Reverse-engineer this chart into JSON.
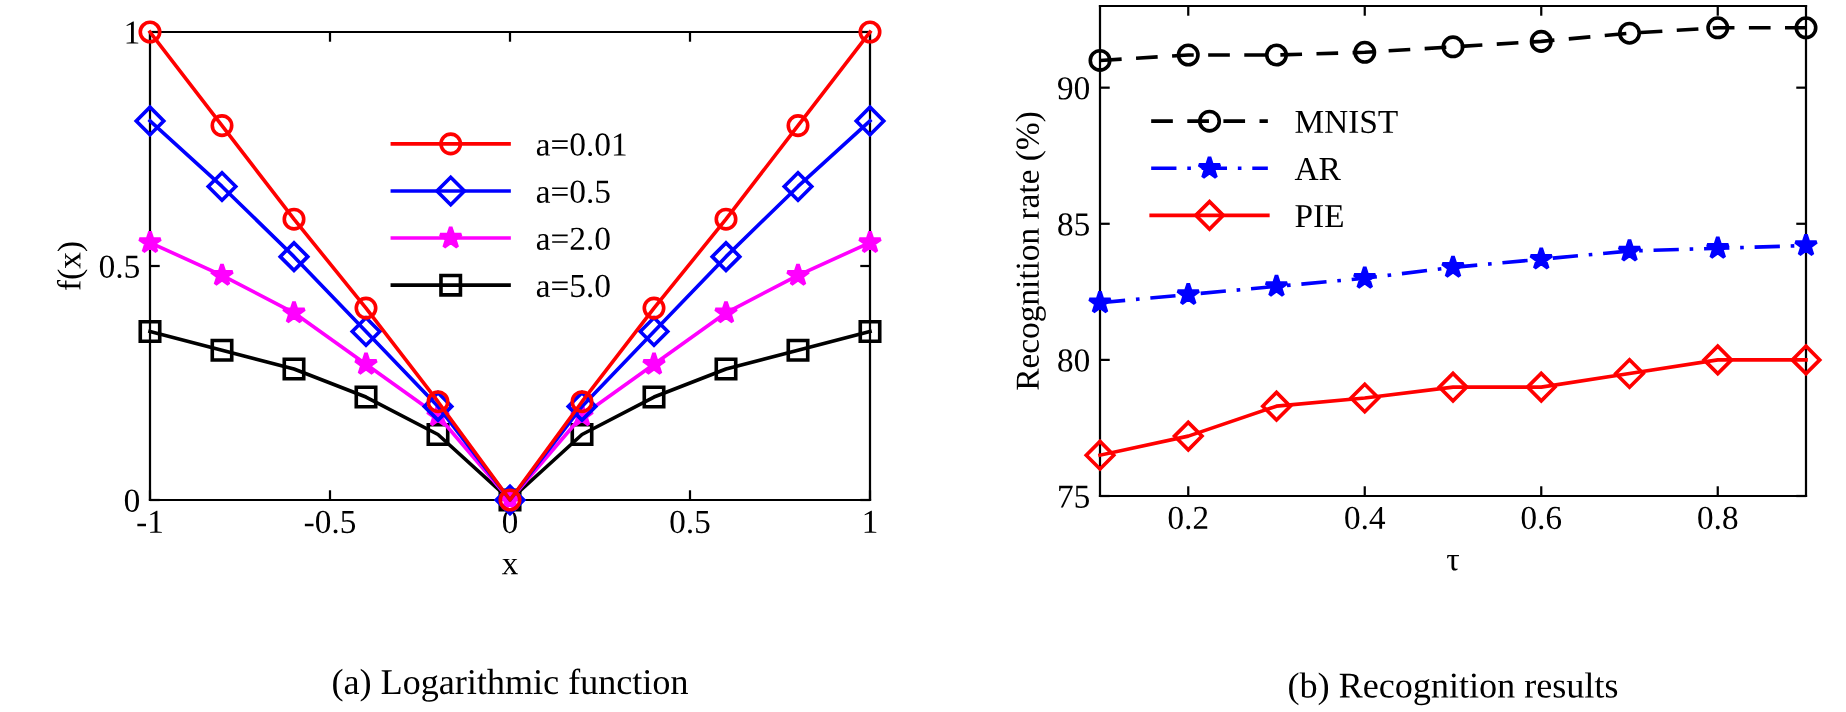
{
  "chart_data": [
    {
      "type": "line",
      "xlabel": "x",
      "ylabel": "f(x)",
      "annotations": [
        "(a) Logarithmic function"
      ],
      "x": [
        -1,
        -0.8,
        -0.6,
        -0.4,
        -0.2,
        0,
        0.2,
        0.4,
        0.6,
        0.8,
        1
      ],
      "series": [
        {
          "name": "a=0.01",
          "color": "#ff0000",
          "marker": "circle",
          "values": [
            1.0,
            0.8,
            0.6,
            0.41,
            0.21,
            0,
            0.21,
            0.41,
            0.6,
            0.8,
            1.0
          ]
        },
        {
          "name": "a=0.5",
          "color": "#0000ff",
          "marker": "diamond",
          "values": [
            0.81,
            0.67,
            0.52,
            0.36,
            0.2,
            0,
            0.2,
            0.36,
            0.52,
            0.67,
            0.81
          ]
        },
        {
          "name": "a=2.0",
          "color": "#ff00ff",
          "marker": "star",
          "values": [
            0.55,
            0.48,
            0.4,
            0.29,
            0.18,
            0,
            0.18,
            0.29,
            0.4,
            0.48,
            0.55
          ]
        },
        {
          "name": "a=5.0",
          "color": "#000000",
          "marker": "square",
          "values": [
            0.36,
            0.32,
            0.28,
            0.22,
            0.14,
            0,
            0.14,
            0.22,
            0.28,
            0.32,
            0.36
          ]
        }
      ],
      "xlim": [
        -1,
        1
      ],
      "ylim": [
        0,
        1
      ],
      "xticks": [
        -1,
        -0.5,
        0,
        0.5,
        1
      ],
      "yticks": [
        0,
        0.5,
        1
      ],
      "legend": "top",
      "line_style": "solid"
    },
    {
      "type": "line",
      "xlabel": "τ",
      "ylabel": "Recognition rate (%)",
      "annotations": [
        "(b) Recognition results"
      ],
      "x": [
        0.1,
        0.2,
        0.3,
        0.4,
        0.5,
        0.6,
        0.7,
        0.8,
        0.9
      ],
      "series": [
        {
          "name": "MNIST",
          "color": "#000000",
          "marker": "circle",
          "line_style": "dashed",
          "values": [
            91.0,
            91.2,
            91.2,
            91.3,
            91.5,
            91.7,
            92.0,
            92.2,
            92.2
          ]
        },
        {
          "name": "AR",
          "color": "#0000ff",
          "marker": "star",
          "line_style": "dashdot",
          "values": [
            82.1,
            82.4,
            82.7,
            83.0,
            83.4,
            83.7,
            84.0,
            84.1,
            84.2
          ]
        },
        {
          "name": "PIE",
          "color": "#ff0000",
          "marker": "diamond",
          "line_style": "solid",
          "values": [
            76.5,
            77.2,
            78.3,
            78.6,
            79.0,
            79.0,
            79.5,
            80.0,
            80.0
          ]
        }
      ],
      "xlim": [
        0.1,
        0.9
      ],
      "ylim": [
        75,
        93
      ],
      "xticks": [
        0.2,
        0.4,
        0.6,
        0.8
      ],
      "yticks": [
        75,
        80,
        85,
        90
      ],
      "legend": "top left"
    }
  ]
}
